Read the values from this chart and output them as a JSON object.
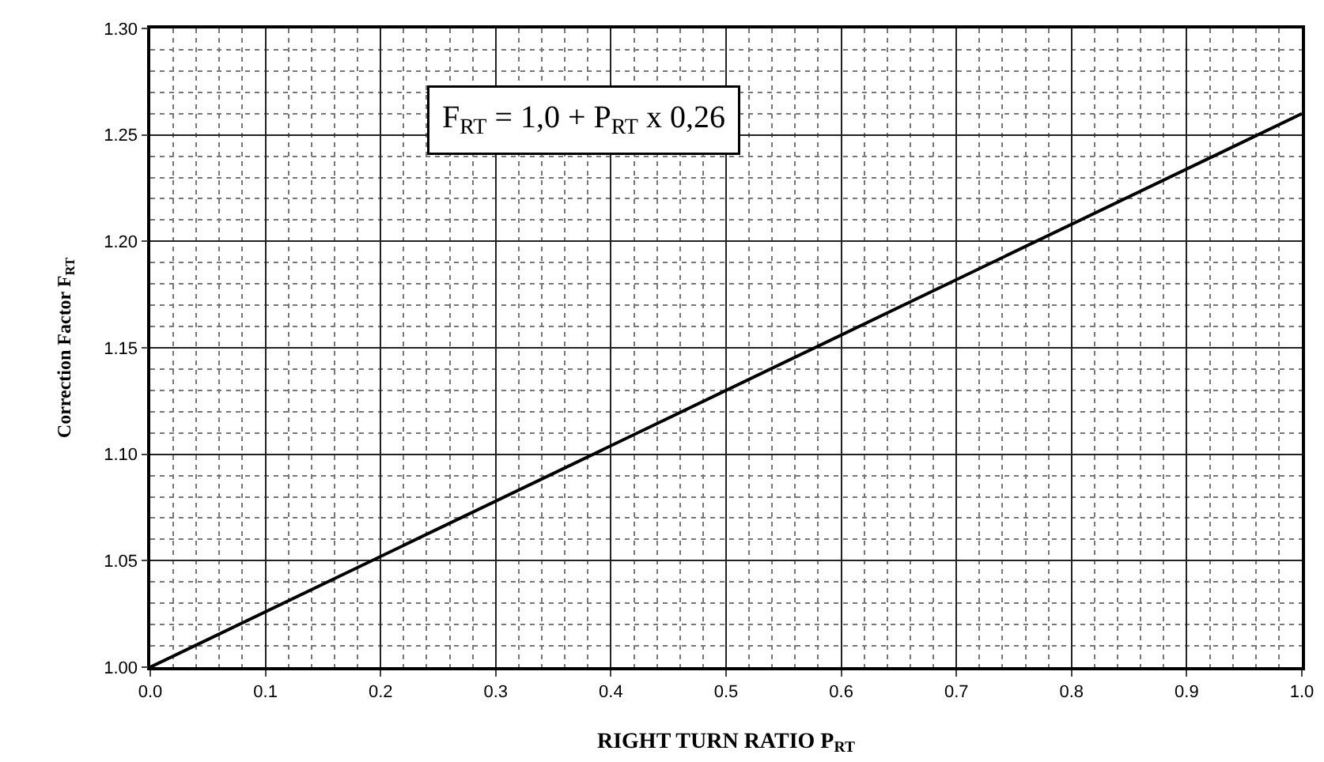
{
  "chart_data": {
    "type": "line",
    "x": [
      0,
      1.0
    ],
    "series": [
      {
        "color": "#000000",
        "values": [
          1.0,
          1.26
        ]
      }
    ],
    "xlabel": "RIGHT TURN RATIO P$_{RT}$",
    "ylabel": "Correction Factor F$_{RT}$",
    "annotations": [
      "F$_{RT}$ = 1,0 + P$_{RT}$ x 0,26"
    ],
    "xlim": [
      0,
      1.0
    ],
    "ylim": [
      1.0,
      1.3
    ],
    "xticks": [
      {
        "value": 0,
        "label": "0.0"
      },
      {
        "value": 0.1,
        "label": "0.1"
      },
      {
        "value": 0.2,
        "label": "0.2"
      },
      {
        "value": 0.3,
        "label": "0.3"
      },
      {
        "value": 0.4,
        "label": "0.4"
      },
      {
        "value": 0.5,
        "label": "0.5"
      },
      {
        "value": 0.6,
        "label": "0.6"
      },
      {
        "value": 0.7,
        "label": "0.7"
      },
      {
        "value": 0.8,
        "label": "0.8"
      },
      {
        "value": 0.9,
        "label": "0.9"
      },
      {
        "value": 1.0,
        "label": "1.0"
      }
    ],
    "yticks": [
      {
        "value": 1.0,
        "label": "1.00"
      },
      {
        "value": 1.05,
        "label": "1.05"
      },
      {
        "value": 1.1,
        "label": "1.10"
      },
      {
        "value": 1.15,
        "label": "1.15"
      },
      {
        "value": 1.2,
        "label": "1.20"
      },
      {
        "value": 1.25,
        "label": "1.25"
      },
      {
        "value": 1.3,
        "label": "1.30"
      }
    ],
    "grid": true,
    "legend": false,
    "marker": "none",
    "line_style": "solid"
  }
}
